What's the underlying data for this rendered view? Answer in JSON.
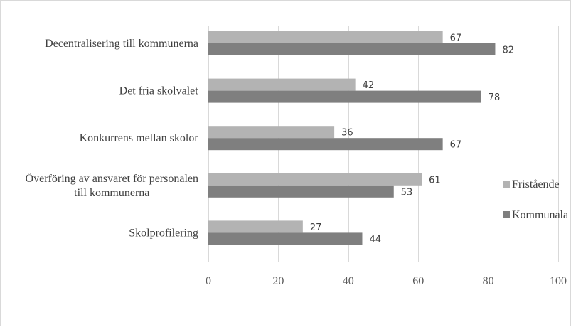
{
  "chart_data": {
    "type": "bar",
    "orientation": "horizontal",
    "categories": [
      [
        "Decentralisering till kommunerna"
      ],
      [
        "Det fria skolvalet"
      ],
      [
        "Konkurrens mellan skolor"
      ],
      [
        "Överföring av ansvaret för personalen",
        "till kommunerna"
      ],
      [
        "Skolprofilering"
      ]
    ],
    "series": [
      {
        "name": "Fristående",
        "values": [
          67,
          42,
          36,
          61,
          27
        ],
        "color": "#b3b3b3"
      },
      {
        "name": "Kommunala",
        "values": [
          82,
          78,
          67,
          53,
          44
        ],
        "color": "#7f7f7f"
      }
    ],
    "xlim": [
      0,
      100
    ],
    "xticks": [
      "0",
      "20",
      "40",
      "60",
      "80",
      "100"
    ],
    "grid": true,
    "grid_color": "#d9d9d9",
    "legend": "right",
    "title": "",
    "xlabel": "",
    "ylabel": ""
  }
}
